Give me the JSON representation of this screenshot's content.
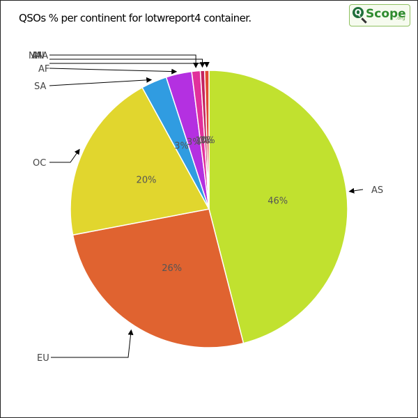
{
  "chart_data": {
    "type": "pie",
    "title": "QSOs % per continent for lotwreport4 container.",
    "slices": [
      {
        "label": "AS",
        "value": 46,
        "pct_label": "46%",
        "color": "#c1e12f"
      },
      {
        "label": "EU",
        "value": 26,
        "pct_label": "26%",
        "color": "#e06330"
      },
      {
        "label": "OC",
        "value": 20,
        "pct_label": "20%",
        "color": "#e1d62e"
      },
      {
        "label": "SA",
        "value": 3,
        "pct_label": "3%",
        "color": "#309ce1"
      },
      {
        "label": "AF",
        "value": 3,
        "pct_label": "3%",
        "color": "#b430e1"
      },
      {
        "label": "NA",
        "value": 1,
        "pct_label": "1%",
        "color": "#e1309c"
      },
      {
        "label": "AN",
        "value": 0.5,
        "pct_label": "0%",
        "color": "#c4235f"
      },
      {
        "label": "MA",
        "value": 0.5,
        "pct_label": "0%",
        "color": "#e14a30"
      }
    ]
  },
  "logo": {
    "mark": "Q",
    "wordmark": "Scope",
    "suffix": ".org"
  }
}
